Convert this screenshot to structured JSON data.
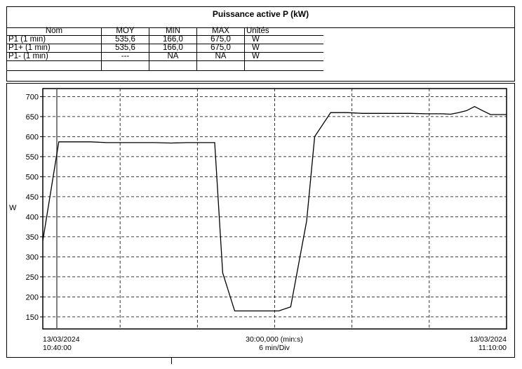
{
  "table": {
    "title": "Puissance active P (kW)",
    "headers": [
      "Nom",
      "MOY",
      "MIN",
      "MAX",
      "Unités"
    ],
    "rows": [
      [
        "P1 (1 min)",
        "535,6",
        "166,0",
        "675,0",
        "W"
      ],
      [
        "P1+ (1 min)",
        "535,6",
        "166,0",
        "675,0",
        "W"
      ],
      [
        "P1- (1 min)",
        "---",
        "NA",
        "NA",
        "W"
      ],
      [
        "",
        "",
        "",
        "",
        ""
      ]
    ]
  },
  "chart_data": {
    "type": "line",
    "ylabel": "W",
    "ylim": [
      120,
      720
    ],
    "yticks": [
      150,
      200,
      250,
      300,
      350,
      400,
      450,
      500,
      550,
      600,
      650,
      700
    ],
    "x_minutes": [
      0,
      2,
      4,
      6,
      8,
      10,
      12,
      14,
      16,
      18,
      20,
      21.5,
      22.5,
      24,
      26,
      27,
      29.5,
      31,
      33,
      34,
      36,
      38,
      40,
      42,
      44,
      46,
      48,
      50,
      51,
      52,
      53,
      54,
      55,
      56,
      57,
      58
    ],
    "values": [
      340,
      587,
      587,
      587,
      585,
      585,
      585,
      585,
      584,
      585,
      585,
      585,
      260,
      165,
      165,
      165,
      165,
      175,
      390,
      600,
      660,
      660,
      658,
      658,
      658,
      658,
      657,
      657,
      656,
      660,
      665,
      675,
      665,
      655,
      655,
      655
    ],
    "x_grid_divs": 6,
    "grid": true,
    "xlabels": {
      "start_date": "13/03/2024",
      "start_time": "10:40:00",
      "center_line1": "30:00,000 (min:s)",
      "center_line2": "6 min/Div",
      "end_date": "13/03/2024",
      "end_time": "11:10:00"
    },
    "colors": {
      "line": "#000000",
      "grid": "#000000",
      "cursor": "#555555"
    }
  }
}
